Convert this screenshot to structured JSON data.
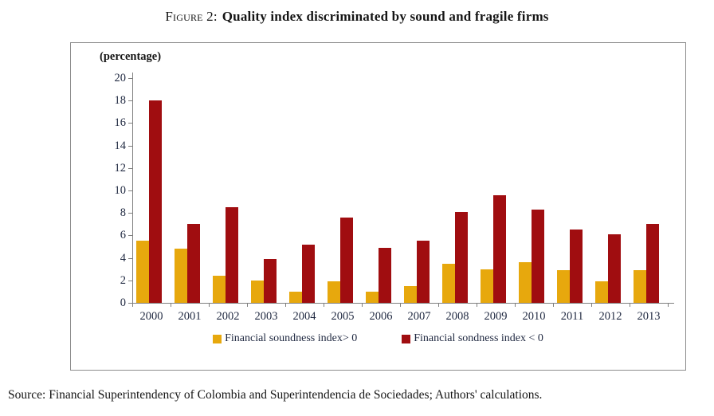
{
  "figure": {
    "label": "Figure 2:",
    "title": "Quality index discriminated by sound and fragile firms"
  },
  "source_line": "Source: Financial Superintendency of Colombia and Superintendencia de Sociedades; Authors' calculations.",
  "chart_data": {
    "type": "bar",
    "title": "Quality index discriminated by sound and fragile firms",
    "unit_label": "(percentage)",
    "categories": [
      "2000",
      "2001",
      "2002",
      "2003",
      "2004",
      "2005",
      "2006",
      "2007",
      "2008",
      "2009",
      "2010",
      "2011",
      "2012",
      "2013"
    ],
    "series": [
      {
        "name": "Financial soundness index> 0",
        "color": "#E7A80D",
        "values": [
          5.5,
          4.8,
          2.4,
          2.0,
          1.0,
          1.9,
          1.0,
          1.5,
          3.5,
          3.0,
          3.6,
          2.9,
          1.9,
          2.9
        ]
      },
      {
        "name": "Financial sondness index < 0",
        "color": "#A00D10",
        "values": [
          18.0,
          7.0,
          8.5,
          3.9,
          5.2,
          7.6,
          4.9,
          5.5,
          8.1,
          9.6,
          8.3,
          6.5,
          6.1,
          7.0
        ]
      }
    ],
    "ylim": [
      0,
      20
    ],
    "ytick_step": 2,
    "grid": false,
    "legend_position": "bottom",
    "axis_color": "#7f7f7f",
    "label_color": "#1f2840"
  }
}
